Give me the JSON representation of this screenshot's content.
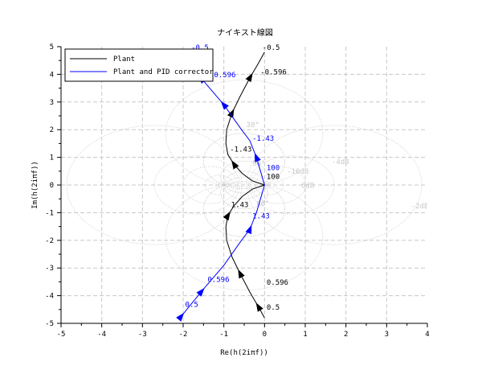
{
  "chart_data": {
    "type": "line",
    "title": "ナイキスト線図",
    "xlabel": "Re(h(2iπf))",
    "ylabel": "Im(h(2iπf))",
    "xlim": [
      -5,
      4
    ],
    "ylim": [
      -5,
      5
    ],
    "xticks": [
      "-5",
      "-4",
      "-3",
      "-2",
      "-1",
      "0",
      "1",
      "2",
      "3",
      "4"
    ],
    "yticks": [
      "-5",
      "-4",
      "-3",
      "-2",
      "-1",
      "0",
      "1",
      "2",
      "3",
      "4",
      "5"
    ],
    "grid": true,
    "legend_position": "top-left",
    "series": [
      {
        "name": "Plant",
        "color": "#000000",
        "lower": [
          [
            0,
            -4.8
          ],
          [
            -0.15,
            -4.4
          ],
          [
            -0.35,
            -3.9
          ],
          [
            -0.6,
            -3.2
          ],
          [
            -0.8,
            -2.6
          ],
          [
            -0.93,
            -2.0
          ],
          [
            -0.95,
            -1.5
          ],
          [
            -0.9,
            -1.1
          ],
          [
            -0.75,
            -0.75
          ],
          [
            -0.55,
            -0.42
          ],
          [
            -0.3,
            -0.15
          ],
          [
            0,
            0
          ]
        ],
        "arrows": [
          1,
          3,
          7
        ],
        "labels": [
          {
            "text": "0.5",
            "x": 0.05,
            "y": -4.5
          },
          {
            "text": "0.596",
            "x": 0.05,
            "y": -3.6
          },
          {
            "text": "1.43",
            "x": -0.82,
            "y": -0.8
          },
          {
            "text": "100",
            "x": 0.05,
            "y": 0.22
          },
          {
            "text": "-0.5",
            "x": -0.05,
            "y": 4.88
          },
          {
            "text": "-0.596",
            "x": -0.1,
            "y": 4.0
          },
          {
            "text": "-1.43",
            "x": -0.85,
            "y": 1.2
          }
        ]
      },
      {
        "name": "Plant and PID corrector",
        "color": "#0000ff",
        "lower": [
          [
            -2.05,
            -4.75
          ],
          [
            -1.55,
            -3.85
          ],
          [
            -1.0,
            -2.9
          ],
          [
            -0.58,
            -2.03
          ],
          [
            -0.36,
            -1.6
          ],
          [
            -0.2,
            -1.0
          ],
          [
            -0.1,
            -0.5
          ],
          [
            0,
            0
          ]
        ],
        "arrows": [
          0,
          1,
          4
        ],
        "labels": [
          {
            "text": "0.5",
            "x": -1.95,
            "y": -4.4
          },
          {
            "text": "0.596",
            "x": -1.4,
            "y": -3.5
          },
          {
            "text": "1.43",
            "x": -0.3,
            "y": -1.2
          },
          {
            "text": "100",
            "x": 0.05,
            "y": 0.22
          },
          {
            "text": "-0.5",
            "x": -1.8,
            "y": 4.88
          },
          {
            "text": "-0.596",
            "x": -1.35,
            "y": 3.9
          },
          {
            "text": "-1.43",
            "x": -0.3,
            "y": 1.6
          }
        ]
      }
    ],
    "gain_circles_db": [
      -2,
      -4,
      -6,
      -10,
      -18,
      2,
      4,
      6,
      10,
      18
    ],
    "phase_circles_deg": [
      15,
      30,
      60,
      90,
      120,
      150
    ],
    "grid_labels": [
      {
        "text": "-4dB",
        "x": 1.65,
        "y": 0.75
      },
      {
        "text": "-2dB",
        "x": 3.6,
        "y": -0.85
      },
      {
        "text": "6dB",
        "x": 0.9,
        "y": -0.1
      },
      {
        "text": "-10dB",
        "x": 0.55,
        "y": 0.4
      },
      {
        "text": "30°",
        "x": -0.45,
        "y": 2.1
      },
      {
        "text": "90°",
        "x": -0.3,
        "y": 0.7
      },
      {
        "text": "60°",
        "x": -0.2,
        "y": -0.75
      }
    ]
  },
  "colors": {
    "grid": "#c8c8c8",
    "hall": "#c8c8c8"
  }
}
